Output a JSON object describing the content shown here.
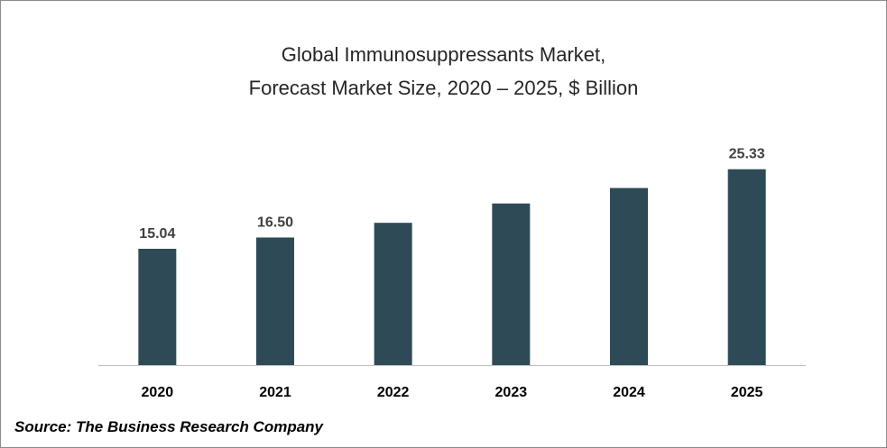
{
  "chart_data": {
    "type": "bar",
    "title": [
      "Global Immunosuppressants Market,",
      "Forecast Market Size, 2020 – 2025, $ Billion"
    ],
    "categories": [
      "2020",
      "2021",
      "2022",
      "2023",
      "2024",
      "2025"
    ],
    "values": [
      15.04,
      16.5,
      18.4,
      20.9,
      22.9,
      25.33
    ],
    "data_labels": [
      "15.04",
      "16.50",
      "",
      "",
      "",
      "25.33"
    ],
    "xlabel": "",
    "ylabel": "",
    "ylim": [
      0,
      28
    ],
    "grid": false,
    "bar_color": "#2e4a57"
  },
  "source": "Source: The Business Research Company"
}
